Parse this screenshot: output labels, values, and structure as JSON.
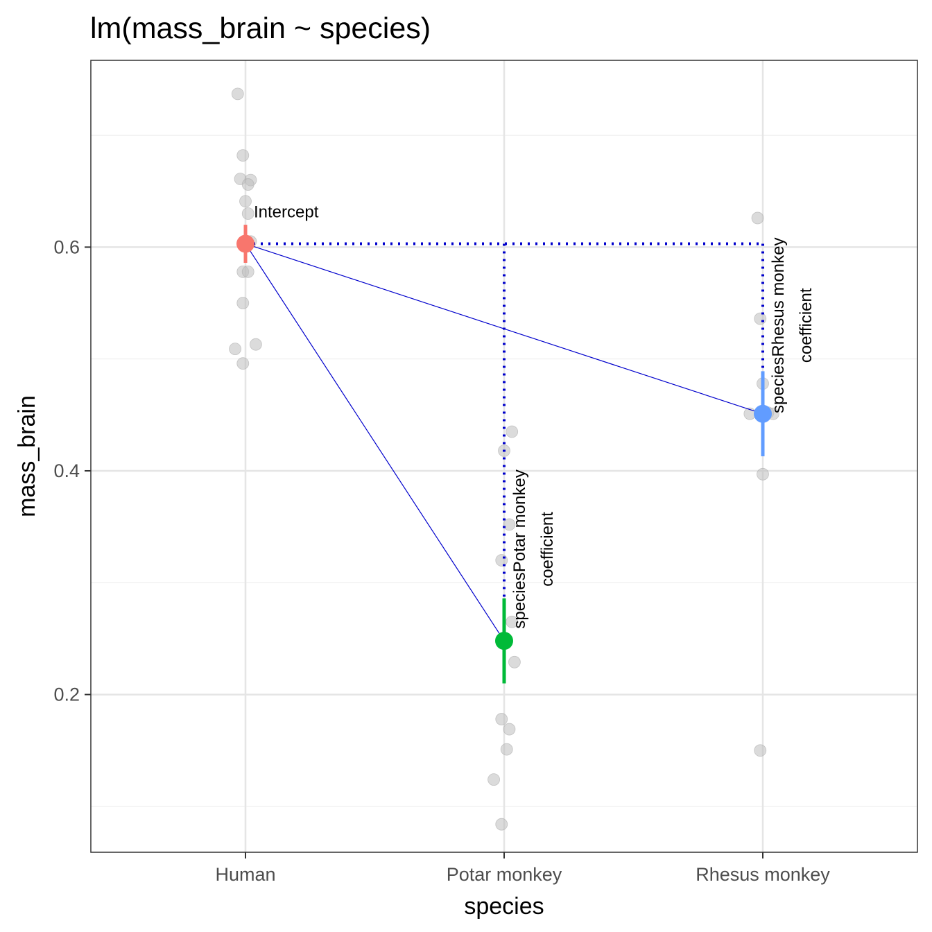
{
  "chart_data": {
    "type": "scatter",
    "title": "lm(mass_brain ~ species)",
    "xlabel": "species",
    "ylabel": "mass_brain",
    "categories": [
      "Human",
      "Potar monkey",
      "Rhesus monkey"
    ],
    "y_ticks": [
      {
        "value": 0.2,
        "label": "0.2"
      },
      {
        "value": 0.4,
        "label": "0.4"
      },
      {
        "value": 0.6,
        "label": "0.6"
      }
    ],
    "ylim": [
      0.059,
      0.767
    ],
    "grid": true,
    "raw_points": [
      {
        "category": "Human",
        "jitter": -0.03,
        "y": 0.737
      },
      {
        "category": "Human",
        "jitter": -0.01,
        "y": 0.682
      },
      {
        "category": "Human",
        "jitter": -0.02,
        "y": 0.661
      },
      {
        "category": "Human",
        "jitter": 0.02,
        "y": 0.66
      },
      {
        "category": "Human",
        "jitter": 0.01,
        "y": 0.656
      },
      {
        "category": "Human",
        "jitter": 0.0,
        "y": 0.641
      },
      {
        "category": "Human",
        "jitter": 0.01,
        "y": 0.63
      },
      {
        "category": "Human",
        "jitter": 0.02,
        "y": 0.605
      },
      {
        "category": "Human",
        "jitter": -0.01,
        "y": 0.578
      },
      {
        "category": "Human",
        "jitter": 0.01,
        "y": 0.578
      },
      {
        "category": "Human",
        "jitter": -0.01,
        "y": 0.55
      },
      {
        "category": "Human",
        "jitter": 0.04,
        "y": 0.513
      },
      {
        "category": "Human",
        "jitter": -0.04,
        "y": 0.509
      },
      {
        "category": "Human",
        "jitter": -0.01,
        "y": 0.496
      },
      {
        "category": "Potar monkey",
        "jitter": 0.0,
        "y": 0.418
      },
      {
        "category": "Potar monkey",
        "jitter": 0.03,
        "y": 0.435
      },
      {
        "category": "Potar monkey",
        "jitter": 0.02,
        "y": 0.352
      },
      {
        "category": "Potar monkey",
        "jitter": -0.01,
        "y": 0.32
      },
      {
        "category": "Potar monkey",
        "jitter": 0.03,
        "y": 0.265
      },
      {
        "category": "Potar monkey",
        "jitter": 0.04,
        "y": 0.229
      },
      {
        "category": "Potar monkey",
        "jitter": -0.01,
        "y": 0.178
      },
      {
        "category": "Potar monkey",
        "jitter": 0.02,
        "y": 0.169
      },
      {
        "category": "Potar monkey",
        "jitter": 0.01,
        "y": 0.151
      },
      {
        "category": "Potar monkey",
        "jitter": -0.04,
        "y": 0.124
      },
      {
        "category": "Potar monkey",
        "jitter": -0.01,
        "y": 0.084
      },
      {
        "category": "Rhesus monkey",
        "jitter": -0.02,
        "y": 0.626
      },
      {
        "category": "Rhesus monkey",
        "jitter": -0.01,
        "y": 0.536
      },
      {
        "category": "Rhesus monkey",
        "jitter": 0.0,
        "y": 0.478
      },
      {
        "category": "Rhesus monkey",
        "jitter": 0.02,
        "y": 0.452
      },
      {
        "category": "Rhesus monkey",
        "jitter": -0.05,
        "y": 0.451
      },
      {
        "category": "Rhesus monkey",
        "jitter": 0.04,
        "y": 0.451
      },
      {
        "category": "Rhesus monkey",
        "jitter": 0.0,
        "y": 0.397
      },
      {
        "category": "Rhesus monkey",
        "jitter": -0.01,
        "y": 0.15
      }
    ],
    "estimates": [
      {
        "category": "Human",
        "value": 0.603,
        "ci": [
          0.586,
          0.62
        ],
        "color": "#F8766D"
      },
      {
        "category": "Potar monkey",
        "value": 0.248,
        "ci": [
          0.21,
          0.286
        ],
        "color": "#00BA38"
      },
      {
        "category": "Rhesus monkey",
        "value": 0.451,
        "ci": [
          0.413,
          0.489
        ],
        "color": "#619CFF"
      }
    ],
    "annotations": [
      {
        "text": "Intercept",
        "category": "Human",
        "y": 0.603
      },
      {
        "text": "speciesPotar monkey",
        "text2": "coefficient",
        "category": "Potar monkey",
        "y": 0.33
      },
      {
        "text": "speciesRhesus monkey",
        "text2": "coefficient",
        "category": "Rhesus monkey",
        "y": 0.53
      }
    ],
    "line_color": "#0000CC",
    "point_color": "#BDBDBD"
  }
}
